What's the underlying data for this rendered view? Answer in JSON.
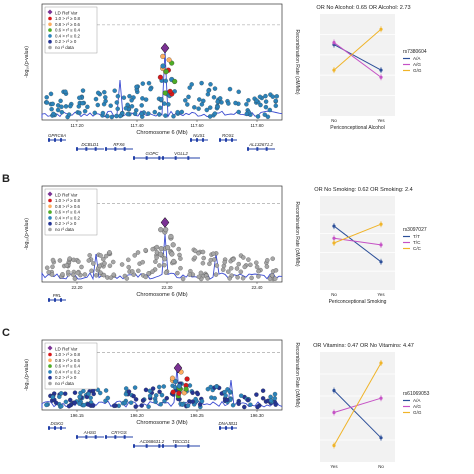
{
  "panels": [
    {
      "label": "",
      "chromosome_label": "Chromosome 6 (Mb)",
      "ylabel": "-log₁₀(p-value)",
      "rlabel": "Recombination Rate (cM/Mb)",
      "xticks": [
        "117.20",
        "117.40",
        "117.60",
        "117.80"
      ],
      "legend_title": "LD Ref Var",
      "legend_items": [
        "1.0 > r² ≥ 0.8",
        "0.8 > r² ≥ 0.6",
        "0.6 > r² ≥ 0.4",
        "0.4 > r² ≥ 0.2",
        "0.2 > r² ≥ 0",
        "no r² data"
      ],
      "genes": [
        "GPRC6A",
        "RFX6",
        "VGLL2",
        "ROS1",
        "DCBLD1",
        "GOPC",
        "NUS1",
        "AL132671.2"
      ],
      "or_title": "OR No Alcohol: 0.65   OR Alcohol: 2.73",
      "interaction_xlabel": "Periconceptional Alcohol",
      "interaction_xticks": [
        "No",
        "Yes"
      ],
      "snp_id": "rs7380604",
      "genotypes": [
        "A/A",
        "A/G",
        "G/G"
      ]
    },
    {
      "label": "B",
      "chromosome_label": "Chromosome 6 (Mb)",
      "ylabel": "-log₁₀(p-value)",
      "rlabel": "Recombination Rate (cM/Mb)",
      "xticks": [
        "22.20",
        "22.30",
        "22.40"
      ],
      "legend_title": "LD Ref Var",
      "legend_items": [
        "1.0 > r² ≥ 0.8",
        "0.8 > r² ≥ 0.6",
        "0.6 > r² ≥ 0.4",
        "0.4 > r² ≥ 0.2",
        "0.2 > r² ≥ 0",
        "no r² data"
      ],
      "genes": [
        "PRL"
      ],
      "or_title": "OR No Smoking: 0.62   OR Smoking: 2.4",
      "interaction_xlabel": "Periconceptional Smoking",
      "interaction_xticks": [
        "No",
        "Yes"
      ],
      "snp_id": "rs3097027",
      "genotypes": [
        "T/T",
        "T/C",
        "C/C"
      ]
    },
    {
      "label": "C",
      "chromosome_label": "Chromosome 3 (Mb)",
      "ylabel": "-log₁₀(p-value)",
      "rlabel": "Recombination Rate (cM/Mb)",
      "xticks": [
        "196.15",
        "196.20",
        "196.25",
        "196.30"
      ],
      "legend_title": "LD Ref Var",
      "legend_items": [
        "1.0 > r² ≥ 0.8",
        "0.8 > r² ≥ 0.6",
        "0.6 > r² ≥ 0.4",
        "0.4 > r² ≥ 0.2",
        "0.2 > r² ≥ 0",
        "no r² data"
      ],
      "genes": [
        "DGKG",
        "CRYGS",
        "TBCCD1",
        "DNAJB11",
        "AHSG",
        "AC068631.2"
      ],
      "or_title": "OR Vitamins: 0.47   OR No Vitamins: 4.47",
      "interaction_xlabel": "",
      "interaction_xticks": [
        "Yes",
        "No"
      ],
      "snp_id": "rs61069053",
      "genotypes": [
        "A/A",
        "A/G",
        "G/G"
      ]
    }
  ],
  "colors": {
    "purple": "#7b3294",
    "r1": "#d7191c",
    "r2": "#fdae61",
    "r3": "#4dac26",
    "r4": "#2b83ba",
    "r5": "#253494",
    "nodata": "#a6a6a6",
    "recomb": "#3b4bd1",
    "geno1": "#2c4f99",
    "geno2": "#c552c5",
    "geno3": "#f0b429"
  }
}
